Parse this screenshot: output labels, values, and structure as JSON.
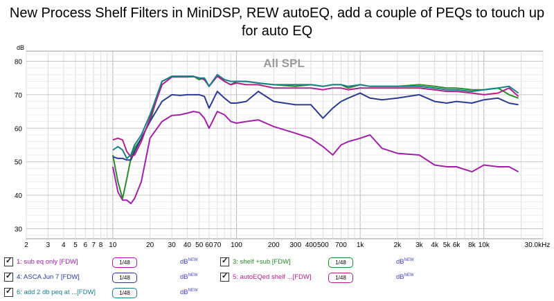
{
  "title_lines": [
    "New Process Shelf Filters in MiniDSP, REW autoEQ, add a couple of PEQs to touch up",
    "for auto EQ"
  ],
  "chart_data": {
    "type": "line",
    "title": "All SPL",
    "xlabel": "",
    "ylabel": "dB",
    "x_scale": "log",
    "xlim": [
      2,
      30000
    ],
    "ylim": [
      27,
      83
    ],
    "grid": true,
    "x_tick_labels": [
      "2",
      "3",
      "4",
      "5",
      "6",
      "7",
      "8",
      "10",
      "20",
      "30",
      "40",
      "50",
      "60",
      "70",
      "100",
      "200",
      "300",
      "400",
      "500",
      "700",
      "1k",
      "2k",
      "3k",
      "4k",
      "5k",
      "6k",
      "8k",
      "10k",
      "30.0kHz"
    ],
    "x_ticks": [
      2,
      3,
      4,
      5,
      6,
      7,
      8,
      10,
      20,
      30,
      40,
      50,
      60,
      70,
      100,
      200,
      300,
      400,
      500,
      700,
      1000,
      2000,
      3000,
      4000,
      5000,
      6000,
      8000,
      10000,
      30000
    ],
    "y_ticks": [
      30,
      40,
      50,
      60,
      70,
      80
    ],
    "y_tick_labels": [
      "30",
      "40",
      "50",
      "60",
      "70",
      "80"
    ],
    "series": [
      {
        "name": "1: sub eq only [FDW]",
        "color": "#a020a8",
        "x": [
          10,
          11,
          12,
          13,
          14,
          15,
          17,
          20,
          25,
          30,
          35,
          40,
          45,
          50,
          55,
          60,
          70,
          80,
          90,
          100,
          120,
          150,
          200,
          300,
          400,
          500,
          600,
          700,
          800,
          1000,
          1200,
          1500,
          2000,
          3000,
          4000,
          5000,
          6000,
          8000,
          10000,
          13000,
          16000,
          19000
        ],
        "y": [
          48.5,
          41,
          38.5,
          38.5,
          37.5,
          39,
          44,
          57,
          62,
          63.8,
          64,
          64.5,
          65,
          64.7,
          63,
          60,
          65,
          64,
          62,
          61.5,
          62,
          62.5,
          60.5,
          58.5,
          57,
          54.5,
          52,
          55,
          56,
          57,
          58,
          54,
          52.5,
          52,
          49,
          48.5,
          48.5,
          47,
          49,
          48.5,
          48.5,
          47
        ]
      },
      {
        "name": "3: shelf +sub [FDW]",
        "color": "#2a8a2a",
        "x": [
          10,
          11,
          12,
          13,
          14,
          15,
          17,
          20,
          25,
          30,
          35,
          40,
          45,
          50,
          55,
          60,
          70,
          80,
          90,
          100,
          120,
          150,
          200,
          300,
          400,
          500,
          600,
          700,
          800,
          1000,
          1200,
          1500,
          2000,
          3000,
          4000,
          5000,
          6000,
          8000,
          10000,
          13000,
          16000,
          19000
        ],
        "y": [
          52,
          44,
          39,
          45,
          51,
          54,
          57,
          62,
          74,
          75.5,
          75.5,
          75.5,
          75.5,
          74.5,
          75,
          72.5,
          76,
          74,
          73,
          74,
          74,
          73.5,
          73,
          72.5,
          73,
          72.5,
          73,
          73,
          72,
          73,
          72.5,
          72.5,
          72.5,
          73,
          72.5,
          72,
          72,
          71.5,
          71.5,
          72,
          70,
          69
        ]
      },
      {
        "name": "4: ASCA Jun 7 [FDW]",
        "color": "#2a3a90",
        "x": [
          10,
          11,
          12,
          13,
          14,
          15,
          17,
          20,
          25,
          30,
          35,
          40,
          45,
          50,
          55,
          60,
          70,
          80,
          90,
          100,
          120,
          150,
          200,
          300,
          400,
          500,
          600,
          700,
          800,
          1000,
          1200,
          1500,
          2000,
          3000,
          4000,
          5000,
          6000,
          8000,
          10000,
          13000,
          16000,
          19000
        ],
        "y": [
          51.5,
          51,
          51,
          50.5,
          50.5,
          53,
          57,
          62,
          68,
          70,
          69.8,
          70,
          70,
          70,
          69.5,
          66,
          71,
          69,
          67.5,
          67.5,
          68,
          71,
          68,
          67,
          67,
          63,
          66,
          68,
          69,
          70.5,
          69,
          68.5,
          69,
          70,
          68,
          67.5,
          68,
          67.5,
          68.5,
          69,
          67.5,
          67
        ]
      },
      {
        "name": "5: autoEQed shelf ...[FDW]",
        "color": "#b0208a",
        "x": [
          10,
          11,
          12,
          13,
          14,
          15,
          17,
          20,
          25,
          30,
          35,
          40,
          45,
          50,
          55,
          60,
          70,
          80,
          90,
          100,
          120,
          150,
          200,
          300,
          400,
          500,
          600,
          700,
          800,
          1000,
          1200,
          1500,
          2000,
          3000,
          4000,
          5000,
          6000,
          8000,
          10000,
          13000,
          16000,
          19000
        ],
        "y": [
          56.5,
          57,
          56.5,
          53,
          51.5,
          52,
          56,
          63,
          73,
          75.3,
          75.3,
          75.3,
          75.4,
          75,
          74.5,
          72.5,
          75.5,
          74,
          73,
          73.5,
          73,
          73,
          72,
          72,
          72,
          71.5,
          72,
          72,
          71.5,
          72,
          72,
          72,
          72,
          72,
          71.5,
          71,
          71,
          70.5,
          70,
          70.5,
          72,
          69.5
        ]
      },
      {
        "name": "6: add 2 db peq at ...[FDW]",
        "color": "#1a7f88",
        "x": [
          10,
          11,
          12,
          13,
          14,
          15,
          17,
          20,
          25,
          30,
          35,
          40,
          45,
          50,
          55,
          60,
          70,
          80,
          90,
          100,
          120,
          150,
          200,
          300,
          400,
          500,
          600,
          700,
          800,
          1000,
          1200,
          1500,
          2000,
          3000,
          4000,
          5000,
          6000,
          8000,
          10000,
          13000,
          16000,
          19000
        ],
        "y": [
          53.5,
          54.5,
          53.5,
          51,
          52,
          55,
          58,
          64,
          74,
          75.5,
          75.5,
          75.5,
          75.5,
          75,
          75,
          72.5,
          76,
          74.5,
          74,
          74,
          74,
          73.5,
          73,
          73,
          73,
          72.5,
          73,
          73,
          72.5,
          73,
          72.5,
          72.5,
          72.5,
          72.5,
          72,
          71.5,
          71.5,
          71,
          71.5,
          72,
          72.5,
          70.5
        ]
      }
    ]
  },
  "legend": [
    {
      "label": "1: sub eq only [FDW]",
      "color": "#a020a8",
      "smoothing": "1/48",
      "db": "dB",
      "badge": "NEW"
    },
    {
      "label": "3: shelf +sub [FDW]",
      "color": "#2a8a2a",
      "smoothing": "1/48",
      "db": "dB",
      "badge": "NEW"
    },
    {
      "label": "4: ASCA Jun 7 [FDW]",
      "color": "#2a3a90",
      "smoothing": "1/48",
      "db": "dB",
      "badge": "NEW"
    },
    {
      "label": "5: autoEQed shelf ...[FDW]",
      "color": "#b0208a",
      "smoothing": "1/48",
      "db": "dB",
      "badge": "NEW"
    },
    {
      "label": "6: add 2 db peq at ...[FDW]",
      "color": "#1a7f88",
      "smoothing": "1/48",
      "db": "dB",
      "badge": "NEW"
    }
  ]
}
